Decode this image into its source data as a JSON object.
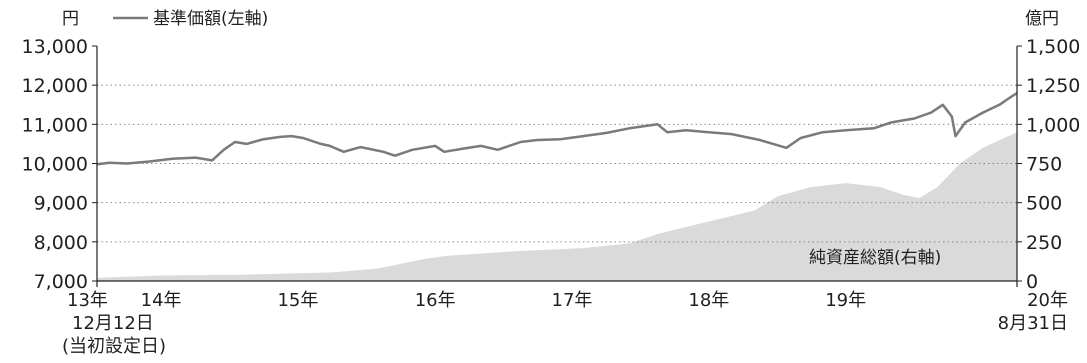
{
  "chart_data": {
    "type": "line+area",
    "left_axis": {
      "unit": "円",
      "range": [
        7000,
        13000
      ],
      "ticks": [
        "13,000",
        "12,000",
        "11,000",
        "10,000",
        "9,000",
        "8,000",
        "7,000"
      ],
      "tick_values": [
        13000,
        12000,
        11000,
        10000,
        9000,
        8000,
        7000
      ]
    },
    "right_axis": {
      "unit": "億円",
      "range": [
        0,
        1500
      ],
      "ticks": [
        "1,500",
        "1,250",
        "1,000",
        "750",
        "500",
        "250",
        "0"
      ],
      "tick_values": [
        1500,
        1250,
        1000,
        750,
        500,
        250,
        0
      ]
    },
    "x_axis": {
      "start_date": "2013-12-12",
      "end_date": "2020-08-31",
      "labels": [
        {
          "text": "13年",
          "date": "2013-12-12",
          "sub": [
            "12月12日",
            "(当初設定日)"
          ]
        },
        {
          "text": "14年",
          "date": "2014-06-01",
          "sub": []
        },
        {
          "text": "15年",
          "date": "2015-06-01",
          "sub": []
        },
        {
          "text": "16年",
          "date": "2016-06-01",
          "sub": []
        },
        {
          "text": "17年",
          "date": "2017-06-01",
          "sub": []
        },
        {
          "text": "18年",
          "date": "2018-06-01",
          "sub": []
        },
        {
          "text": "19年",
          "date": "2019-06-01",
          "sub": []
        },
        {
          "text": "20年",
          "date": "2020-08-31",
          "sub": [
            "8月31日"
          ]
        }
      ]
    },
    "grid": true,
    "series": [
      {
        "name": "基準価額(左軸)",
        "type": "line",
        "axis": "left",
        "color": "#7a7a7a",
        "points": [
          [
            "2013-12-12",
            9980
          ],
          [
            "2014-01-15",
            10020
          ],
          [
            "2014-03-01",
            10000
          ],
          [
            "2014-05-01",
            10050
          ],
          [
            "2014-07-01",
            10120
          ],
          [
            "2014-09-01",
            10150
          ],
          [
            "2014-10-15",
            10080
          ],
          [
            "2014-11-15",
            10350
          ],
          [
            "2014-12-15",
            10550
          ],
          [
            "2015-01-15",
            10500
          ],
          [
            "2015-03-01",
            10620
          ],
          [
            "2015-04-15",
            10680
          ],
          [
            "2015-05-15",
            10700
          ],
          [
            "2015-06-15",
            10650
          ],
          [
            "2015-08-01",
            10500
          ],
          [
            "2015-08-25",
            10450
          ],
          [
            "2015-10-01",
            10300
          ],
          [
            "2015-11-15",
            10420
          ],
          [
            "2016-01-15",
            10300
          ],
          [
            "2016-02-15",
            10200
          ],
          [
            "2016-04-01",
            10350
          ],
          [
            "2016-06-01",
            10450
          ],
          [
            "2016-06-25",
            10300
          ],
          [
            "2016-08-15",
            10380
          ],
          [
            "2016-10-01",
            10450
          ],
          [
            "2016-11-15",
            10350
          ],
          [
            "2017-01-15",
            10550
          ],
          [
            "2017-03-01",
            10600
          ],
          [
            "2017-05-01",
            10620
          ],
          [
            "2017-07-01",
            10700
          ],
          [
            "2017-09-01",
            10780
          ],
          [
            "2017-11-01",
            10900
          ],
          [
            "2018-01-15",
            11000
          ],
          [
            "2018-02-10",
            10800
          ],
          [
            "2018-04-01",
            10850
          ],
          [
            "2018-06-01",
            10800
          ],
          [
            "2018-08-01",
            10750
          ],
          [
            "2018-10-15",
            10600
          ],
          [
            "2018-12-25",
            10400
          ],
          [
            "2019-02-01",
            10650
          ],
          [
            "2019-04-01",
            10800
          ],
          [
            "2019-06-01",
            10850
          ],
          [
            "2019-08-15",
            10900
          ],
          [
            "2019-10-01",
            11050
          ],
          [
            "2019-12-01",
            11150
          ],
          [
            "2020-01-15",
            11300
          ],
          [
            "2020-02-15",
            11500
          ],
          [
            "2020-03-10",
            11200
          ],
          [
            "2020-03-20",
            10700
          ],
          [
            "2020-04-15",
            11050
          ],
          [
            "2020-06-01",
            11300
          ],
          [
            "2020-07-15",
            11500
          ],
          [
            "2020-08-15",
            11700
          ],
          [
            "2020-08-31",
            11800
          ]
        ]
      },
      {
        "name": "純資産総額(右軸)",
        "type": "area",
        "axis": "right",
        "color": "#dadada",
        "points": [
          [
            "2013-12-12",
            20
          ],
          [
            "2014-06-01",
            35
          ],
          [
            "2015-01-01",
            40
          ],
          [
            "2015-09-01",
            55
          ],
          [
            "2016-01-01",
            80
          ],
          [
            "2016-05-01",
            140
          ],
          [
            "2016-07-01",
            160
          ],
          [
            "2017-01-01",
            190
          ],
          [
            "2017-07-01",
            210
          ],
          [
            "2017-11-01",
            240
          ],
          [
            "2018-01-15",
            300
          ],
          [
            "2018-06-01",
            380
          ],
          [
            "2018-10-01",
            450
          ],
          [
            "2018-12-01",
            540
          ],
          [
            "2019-03-01",
            600
          ],
          [
            "2019-06-01",
            625
          ],
          [
            "2019-09-01",
            600
          ],
          [
            "2019-11-01",
            550
          ],
          [
            "2019-12-15",
            530
          ],
          [
            "2020-02-01",
            600
          ],
          [
            "2020-04-01",
            750
          ],
          [
            "2020-06-01",
            850
          ],
          [
            "2020-08-31",
            950
          ]
        ]
      }
    ]
  },
  "legend": {
    "line_label": "基準価額(左軸)",
    "area_label": "純資産総額(右軸)"
  }
}
